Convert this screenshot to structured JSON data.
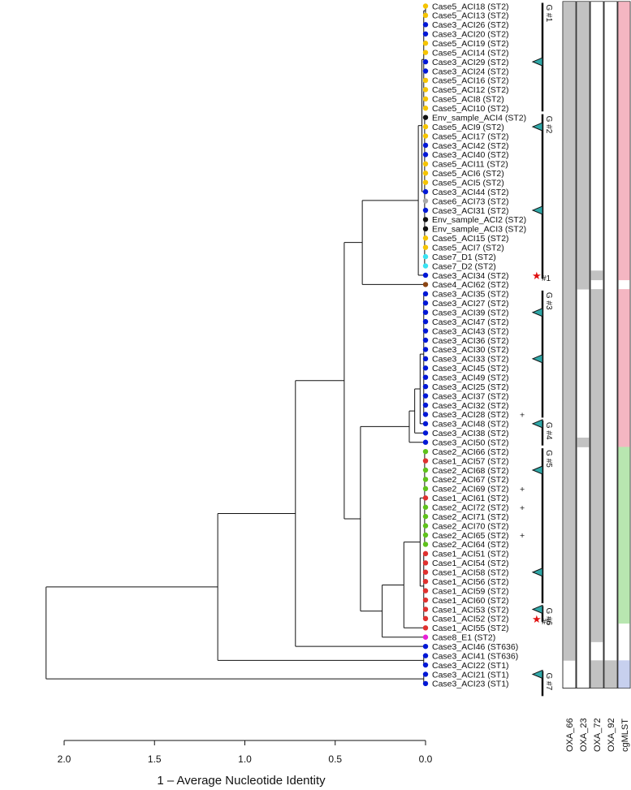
{
  "axis": {
    "title": "1 – Average Nucleotide Identity",
    "ticks": [
      2.0,
      1.5,
      1.0,
      0.5,
      0.0
    ],
    "tick_labels": [
      "2.0",
      "1.5",
      "1.0",
      "0.5",
      "0.0"
    ]
  },
  "colors": {
    "Case1": "#e0312f",
    "Case2": "#5fc21b",
    "Case3": "#0018d6",
    "Case4": "#8b4513",
    "Case5": "#f5c400",
    "Case6": "#aaaaaa",
    "Case7": "#3ae3f2",
    "Case8": "#e81fd6",
    "Env": "#111111",
    "marker": "#2fa8a8",
    "star": "#e01010",
    "present": "#c2c2c2",
    "mlst_pink": "#f4b6c2",
    "mlst_green": "#b8e6b0",
    "mlst_blue": "#c7d0ee"
  },
  "gene_columns": [
    "OXA_66",
    "OXA_23",
    "OXA_72",
    "OXA_92"
  ],
  "cgmlst_label": "cgMLST",
  "tips": [
    {
      "label": "Case5_ACI18 (ST2)",
      "case": "Case5",
      "genes": [
        1,
        1,
        0,
        0
      ],
      "mlst": "pink"
    },
    {
      "label": "Case5_ACI13 (ST2)",
      "case": "Case5",
      "genes": [
        1,
        1,
        0,
        0
      ],
      "mlst": "pink"
    },
    {
      "label": "Case3_ACI26 (ST2)",
      "case": "Case3",
      "genes": [
        1,
        1,
        0,
        0
      ],
      "mlst": "pink"
    },
    {
      "label": "Case3_ACI20 (ST2)",
      "case": "Case3",
      "genes": [
        1,
        1,
        0,
        0
      ],
      "mlst": "pink"
    },
    {
      "label": "Case5_ACI19 (ST2)",
      "case": "Case5",
      "genes": [
        1,
        1,
        0,
        0
      ],
      "mlst": "pink"
    },
    {
      "label": "Case5_ACI14 (ST2)",
      "case": "Case5",
      "genes": [
        1,
        1,
        0,
        0
      ],
      "mlst": "pink"
    },
    {
      "label": "Case3_ACI29 (ST2)",
      "case": "Case3",
      "genes": [
        1,
        1,
        0,
        0
      ],
      "mlst": "pink"
    },
    {
      "label": "Case3_ACI24 (ST2)",
      "case": "Case3",
      "genes": [
        1,
        1,
        0,
        0
      ],
      "mlst": "pink"
    },
    {
      "label": "Case5_ACI16 (ST2)",
      "case": "Case5",
      "genes": [
        1,
        1,
        0,
        0
      ],
      "mlst": "pink"
    },
    {
      "label": "Case5_ACI12 (ST2)",
      "case": "Case5",
      "genes": [
        1,
        1,
        0,
        0
      ],
      "mlst": "pink"
    },
    {
      "label": "Case5_ACI8 (ST2)",
      "case": "Case5",
      "genes": [
        1,
        1,
        0,
        0
      ],
      "mlst": "pink"
    },
    {
      "label": "Case5_ACI10 (ST2)",
      "case": "Case5",
      "genes": [
        1,
        1,
        0,
        0
      ],
      "mlst": "pink"
    },
    {
      "label": "Env_sample_ACI4 (ST2)",
      "case": "Env",
      "genes": [
        1,
        1,
        0,
        0
      ],
      "mlst": "pink"
    },
    {
      "label": "Case5_ACI9 (ST2)",
      "case": "Case5",
      "genes": [
        1,
        1,
        0,
        0
      ],
      "mlst": "pink"
    },
    {
      "label": "Case5_ACI17 (ST2)",
      "case": "Case5",
      "genes": [
        1,
        1,
        0,
        0
      ],
      "mlst": "pink"
    },
    {
      "label": "Case3_ACI42 (ST2)",
      "case": "Case3",
      "genes": [
        1,
        1,
        0,
        0
      ],
      "mlst": "pink"
    },
    {
      "label": "Case3_ACI40 (ST2)",
      "case": "Case3",
      "genes": [
        1,
        1,
        0,
        0
      ],
      "mlst": "pink"
    },
    {
      "label": "Case5_ACI11 (ST2)",
      "case": "Case5",
      "genes": [
        1,
        1,
        0,
        0
      ],
      "mlst": "pink"
    },
    {
      "label": "Case5_ACI6 (ST2)",
      "case": "Case5",
      "genes": [
        1,
        1,
        0,
        0
      ],
      "mlst": "pink"
    },
    {
      "label": "Case5_ACI5 (ST2)",
      "case": "Case5",
      "genes": [
        1,
        1,
        0,
        0
      ],
      "mlst": "pink"
    },
    {
      "label": "Case3_ACI44 (ST2)",
      "case": "Case3",
      "genes": [
        1,
        1,
        0,
        0
      ],
      "mlst": "pink"
    },
    {
      "label": "Case6_ACI73 (ST2)",
      "case": "Case6",
      "genes": [
        1,
        1,
        0,
        0
      ],
      "mlst": "pink"
    },
    {
      "label": "Case3_ACI31 (ST2)",
      "case": "Case3",
      "genes": [
        1,
        1,
        0,
        0
      ],
      "mlst": "pink"
    },
    {
      "label": "Env_sample_ACI2 (ST2)",
      "case": "Env",
      "genes": [
        1,
        1,
        0,
        0
      ],
      "mlst": "pink"
    },
    {
      "label": "Env_sample_ACI3 (ST2)",
      "case": "Env",
      "genes": [
        1,
        1,
        0,
        0
      ],
      "mlst": "pink"
    },
    {
      "label": "Case5_ACI15 (ST2)",
      "case": "Case5",
      "genes": [
        1,
        1,
        0,
        0
      ],
      "mlst": "pink"
    },
    {
      "label": "Case5_ACI7 (ST2)",
      "case": "Case5",
      "genes": [
        1,
        1,
        0,
        0
      ],
      "mlst": "pink"
    },
    {
      "label": "Case7_D1 (ST2)",
      "case": "Case7",
      "genes": [
        1,
        1,
        0,
        0
      ],
      "mlst": "pink"
    },
    {
      "label": "Case7_D2 (ST2)",
      "case": "Case7",
      "genes": [
        1,
        1,
        0,
        0
      ],
      "mlst": "pink"
    },
    {
      "label": "Case3_ACI34 (ST2)",
      "case": "Case3",
      "genes": [
        1,
        1,
        1,
        0
      ],
      "mlst": "pink",
      "star": "#1"
    },
    {
      "label": "Case4_ACI62 (ST2)",
      "case": "Case4",
      "genes": [
        1,
        1,
        0,
        0
      ],
      "mlst": "none"
    },
    {
      "label": "Case3_ACI35 (ST2)",
      "case": "Case3",
      "genes": [
        1,
        0,
        1,
        0
      ],
      "mlst": "pink"
    },
    {
      "label": "Case3_ACI27 (ST2)",
      "case": "Case3",
      "genes": [
        1,
        0,
        1,
        0
      ],
      "mlst": "pink"
    },
    {
      "label": "Case3_ACI39 (ST2)",
      "case": "Case3",
      "genes": [
        1,
        0,
        1,
        0
      ],
      "mlst": "pink"
    },
    {
      "label": "Case3_ACI47 (ST2)",
      "case": "Case3",
      "genes": [
        1,
        0,
        1,
        0
      ],
      "mlst": "pink"
    },
    {
      "label": "Case3_ACI43 (ST2)",
      "case": "Case3",
      "genes": [
        1,
        0,
        1,
        0
      ],
      "mlst": "pink"
    },
    {
      "label": "Case3_ACI36 (ST2)",
      "case": "Case3",
      "genes": [
        1,
        0,
        1,
        0
      ],
      "mlst": "pink"
    },
    {
      "label": "Case3_ACI30 (ST2)",
      "case": "Case3",
      "genes": [
        1,
        0,
        1,
        0
      ],
      "mlst": "pink"
    },
    {
      "label": "Case3_ACI33 (ST2)",
      "case": "Case3",
      "genes": [
        1,
        0,
        1,
        0
      ],
      "mlst": "pink"
    },
    {
      "label": "Case3_ACI45 (ST2)",
      "case": "Case3",
      "genes": [
        1,
        0,
        1,
        0
      ],
      "mlst": "pink"
    },
    {
      "label": "Case3_ACI49 (ST2)",
      "case": "Case3",
      "genes": [
        1,
        0,
        1,
        0
      ],
      "mlst": "pink"
    },
    {
      "label": "Case3_ACI25 (ST2)",
      "case": "Case3",
      "genes": [
        1,
        0,
        1,
        0
      ],
      "mlst": "pink"
    },
    {
      "label": "Case3_ACI37 (ST2)",
      "case": "Case3",
      "genes": [
        1,
        0,
        1,
        0
      ],
      "mlst": "pink"
    },
    {
      "label": "Case3_ACI32 (ST2)",
      "case": "Case3",
      "genes": [
        1,
        0,
        1,
        0
      ],
      "mlst": "pink"
    },
    {
      "label": "Case3_ACI28 (ST2)",
      "case": "Case3",
      "genes": [
        1,
        0,
        1,
        0
      ],
      "mlst": "pink",
      "plus": "+"
    },
    {
      "label": "Case3_ACI48 (ST2)",
      "case": "Case3",
      "genes": [
        1,
        0,
        1,
        0
      ],
      "mlst": "pink"
    },
    {
      "label": "Case3_ACI38 (ST2)",
      "case": "Case3",
      "genes": [
        1,
        0,
        1,
        0
      ],
      "mlst": "pink"
    },
    {
      "label": "Case3_ACI50 (ST2)",
      "case": "Case3",
      "genes": [
        1,
        1,
        1,
        0
      ],
      "mlst": "pink"
    },
    {
      "label": "Case2_ACI66 (ST2)",
      "case": "Case2",
      "genes": [
        1,
        0,
        1,
        0
      ],
      "mlst": "green"
    },
    {
      "label": "Case1_ACI57 (ST2)",
      "case": "Case1",
      "genes": [
        1,
        0,
        1,
        0
      ],
      "mlst": "green"
    },
    {
      "label": "Case2_ACI68 (ST2)",
      "case": "Case2",
      "genes": [
        1,
        0,
        1,
        0
      ],
      "mlst": "green"
    },
    {
      "label": "Case2_ACI67 (ST2)",
      "case": "Case2",
      "genes": [
        1,
        0,
        1,
        0
      ],
      "mlst": "green"
    },
    {
      "label": "Case2_ACI69 (ST2)",
      "case": "Case2",
      "genes": [
        1,
        0,
        1,
        0
      ],
      "mlst": "green",
      "plus": "+"
    },
    {
      "label": "Case1_ACI61 (ST2)",
      "case": "Case1",
      "genes": [
        1,
        0,
        1,
        0
      ],
      "mlst": "green"
    },
    {
      "label": "Case2_ACI72 (ST2)",
      "case": "Case2",
      "genes": [
        1,
        0,
        1,
        0
      ],
      "mlst": "green",
      "plus": "+"
    },
    {
      "label": "Case2_ACI71 (ST2)",
      "case": "Case2",
      "genes": [
        1,
        0,
        1,
        0
      ],
      "mlst": "green"
    },
    {
      "label": "Case2_ACI70 (ST2)",
      "case": "Case2",
      "genes": [
        1,
        0,
        1,
        0
      ],
      "mlst": "green"
    },
    {
      "label": "Case2_ACI65 (ST2)",
      "case": "Case2",
      "genes": [
        1,
        0,
        1,
        0
      ],
      "mlst": "green",
      "plus": "+"
    },
    {
      "label": "Case2_ACI64 (ST2)",
      "case": "Case2",
      "genes": [
        1,
        0,
        1,
        0
      ],
      "mlst": "green"
    },
    {
      "label": "Case1_ACI51 (ST2)",
      "case": "Case1",
      "genes": [
        1,
        0,
        1,
        0
      ],
      "mlst": "green"
    },
    {
      "label": "Case1_ACI54 (ST2)",
      "case": "Case1",
      "genes": [
        1,
        0,
        1,
        0
      ],
      "mlst": "green"
    },
    {
      "label": "Case1_ACI58 (ST2)",
      "case": "Case1",
      "genes": [
        1,
        0,
        1,
        0
      ],
      "mlst": "green"
    },
    {
      "label": "Case1_ACI56 (ST2)",
      "case": "Case1",
      "genes": [
        1,
        0,
        1,
        0
      ],
      "mlst": "green"
    },
    {
      "label": "Case1_ACI59 (ST2)",
      "case": "Case1",
      "genes": [
        1,
        0,
        1,
        0
      ],
      "mlst": "green"
    },
    {
      "label": "Case1_ACI60 (ST2)",
      "case": "Case1",
      "genes": [
        1,
        0,
        1,
        0
      ],
      "mlst": "green"
    },
    {
      "label": "Case1_ACI53 (ST2)",
      "case": "Case1",
      "genes": [
        1,
        0,
        1,
        0
      ],
      "mlst": "green"
    },
    {
      "label": "Case1_ACI52 (ST2)",
      "case": "Case1",
      "genes": [
        1,
        0,
        1,
        0
      ],
      "mlst": "green",
      "star": "#5"
    },
    {
      "label": "Case1_ACI55 (ST2)",
      "case": "Case1",
      "genes": [
        1,
        0,
        1,
        0
      ],
      "mlst": "none"
    },
    {
      "label": "Case8_E1 (ST2)",
      "case": "Case8",
      "genes": [
        1,
        0,
        1,
        0
      ],
      "mlst": "none"
    },
    {
      "label": "Case3_ACI46 (ST636)",
      "case": "Case3",
      "genes": [
        1,
        0,
        0,
        0
      ],
      "mlst": "none"
    },
    {
      "label": "Case3_ACI41 (ST636)",
      "case": "Case3",
      "genes": [
        1,
        0,
        0,
        0
      ],
      "mlst": "none"
    },
    {
      "label": "Case3_ACI22 (ST1)",
      "case": "Case3",
      "genes": [
        0,
        0,
        1,
        1
      ],
      "mlst": "blue"
    },
    {
      "label": "Case3_ACI21 (ST1)",
      "case": "Case3",
      "genes": [
        0,
        0,
        1,
        1
      ],
      "mlst": "blue"
    },
    {
      "label": "Case3_ACI23 (ST1)",
      "case": "Case3",
      "genes": [
        0,
        0,
        1,
        1
      ],
      "mlst": "blue"
    }
  ],
  "tree_nodes": [
    {
      "d": 0.0,
      "from": 0,
      "to": 1
    },
    {
      "d": 0.01,
      "from": 0,
      "to": 11
    },
    {
      "d": 0.005,
      "from": 12,
      "to": 28
    },
    {
      "d": 0.02,
      "from": 0,
      "to": 28
    },
    {
      "d": 0.04,
      "from": 0,
      "to": 29
    },
    {
      "d": 0.35,
      "from": 0,
      "to": 30
    },
    {
      "d": 0.01,
      "from": 31,
      "to": 44
    },
    {
      "d": 0.03,
      "from": 31,
      "to": 45
    },
    {
      "d": 0.06,
      "from": 31,
      "to": 46
    },
    {
      "d": 0.09,
      "from": 31,
      "to": 47
    },
    {
      "d": 0.005,
      "from": 48,
      "to": 58
    },
    {
      "d": 0.01,
      "from": 59,
      "to": 66
    },
    {
      "d": 0.03,
      "from": 48,
      "to": 66
    },
    {
      "d": 0.12,
      "from": 48,
      "to": 67
    },
    {
      "d": 0.24,
      "from": 48,
      "to": 68
    },
    {
      "d": 0.36,
      "from": 31,
      "to": 68
    },
    {
      "d": 0.45,
      "from": 0,
      "to": 68
    },
    {
      "d": 0.72,
      "from": 0,
      "to": 69
    },
    {
      "d": 0.01,
      "from": 70,
      "to": 71
    },
    {
      "d": 1.15,
      "from": 0,
      "to": 71
    },
    {
      "d": 0.01,
      "from": 72,
      "to": 74
    },
    {
      "d": 2.1,
      "from": 0,
      "to": 74
    }
  ],
  "groups": [
    {
      "label": "G #1",
      "from": 0,
      "to": 11
    },
    {
      "label": "G #2",
      "from": 12,
      "to": 29
    },
    {
      "label": "G #3",
      "from": 31,
      "to": 44
    },
    {
      "label": "G #4",
      "from": 45,
      "to": 47
    },
    {
      "label": "G #5",
      "from": 48,
      "to": 64
    },
    {
      "label": "G #6",
      "from": 65,
      "to": 66
    },
    {
      "label": "G #7",
      "from": 72,
      "to": 74
    }
  ],
  "markers": [
    6,
    13,
    22,
    33,
    38,
    45,
    50,
    61,
    65,
    72
  ]
}
